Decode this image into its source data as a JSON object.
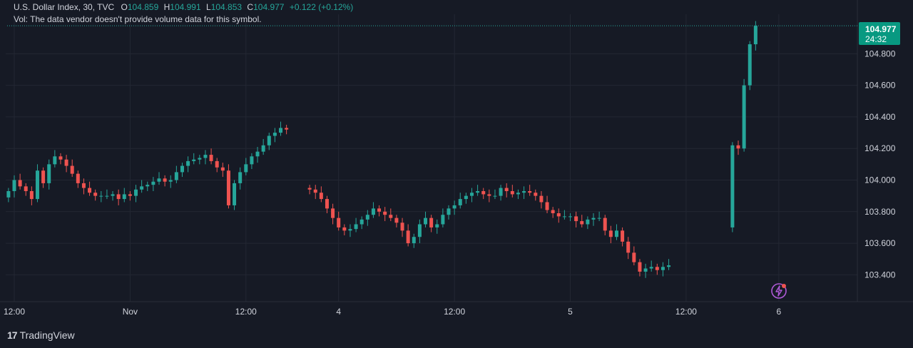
{
  "legend": {
    "symbol": "U.S. Dollar Index, 30, TVC",
    "open_label": "O",
    "open": "104.859",
    "high_label": "H",
    "high": "104.991",
    "low_label": "L",
    "low": "104.853",
    "close_label": "C",
    "close": "104.977",
    "change": "+0.122 (+0.12%)",
    "volume_note": "Vol: The data vendor doesn't provide volume data for this symbol."
  },
  "last_price": {
    "price": "104.977",
    "countdown": "24:32"
  },
  "branding": {
    "logo_text": "TradingView",
    "logo_mark": "17"
  },
  "colors": {
    "background": "#161a25",
    "up": "#26a69a",
    "down": "#ef5350",
    "grid": "#232733",
    "text": "#d1d4dc",
    "tag": "#089981"
  },
  "chart_data": {
    "type": "candlestick",
    "y_axis": {
      "ticks": [
        103.4,
        103.6,
        103.8,
        104.0,
        104.2,
        104.4,
        104.6,
        104.8
      ],
      "tick_labels": [
        "103.400",
        "103.600",
        "103.800",
        "104.000",
        "104.200",
        "104.400",
        "104.600",
        "104.800"
      ],
      "range": [
        103.23,
        105.05
      ]
    },
    "x_axis": {
      "tick_labels": [
        "12:00",
        "Nov",
        "12:00",
        "4",
        "12:00",
        "5",
        "12:00",
        "6"
      ],
      "tick_bars": [
        0,
        20,
        40,
        56,
        76,
        96,
        116,
        132
      ]
    },
    "grid": true,
    "last_close": 104.977,
    "segments": [
      {
        "start_bar": -1,
        "closes": [
          103.93,
          104.0,
          103.96,
          103.93,
          103.88,
          104.06,
          103.98,
          104.1,
          104.15,
          104.13,
          104.09,
          104.04,
          103.98,
          103.95,
          103.92,
          103.9,
          103.9,
          103.9,
          103.91,
          103.88,
          103.91,
          103.9,
          103.94,
          103.96,
          103.97,
          103.99,
          104.01,
          103.99,
          104.0,
          104.05,
          104.09,
          104.12,
          104.13,
          104.14,
          104.16,
          104.12,
          104.08,
          104.06,
          103.84,
          103.98,
          104.05,
          104.1,
          104.15,
          104.18,
          104.22,
          104.28,
          104.3,
          104.33,
          104.32
        ]
      },
      {
        "start_bar": 51,
        "closes": [
          103.94,
          103.92,
          103.88,
          103.82,
          103.76,
          103.7,
          103.68,
          103.69,
          103.72,
          103.75,
          103.78,
          103.82,
          103.8,
          103.78,
          103.76,
          103.73,
          103.68,
          103.6,
          103.64,
          103.72,
          103.76,
          103.7,
          103.72,
          103.78,
          103.82,
          103.84,
          103.88,
          103.9,
          103.92,
          103.93,
          103.91,
          103.9,
          103.9,
          103.95,
          103.93,
          103.91,
          103.92,
          103.93,
          103.92,
          103.9,
          103.86,
          103.81,
          103.79,
          103.77,
          103.77,
          103.77,
          103.74,
          103.72,
          103.75,
          103.76,
          103.76,
          103.68,
          103.64,
          103.68,
          103.61,
          103.54,
          103.48,
          103.42,
          103.44,
          103.45,
          103.43,
          103.45,
          103.46
        ]
      },
      {
        "start_bar": 124,
        "closes": [
          104.22,
          104.2,
          104.6,
          104.86,
          104.977
        ]
      }
    ]
  }
}
